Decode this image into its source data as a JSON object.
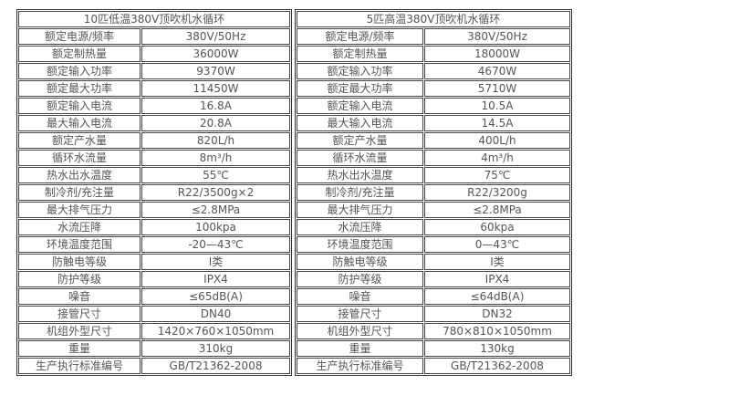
{
  "tables": [
    {
      "title": "10匹低温380V顶吹机水循环",
      "rows": [
        [
          "额定电源/频率",
          "380V/50Hz"
        ],
        [
          "额定制热量",
          "36000W"
        ],
        [
          "额定输入功率",
          "9370W"
        ],
        [
          "额定最大功率",
          "11450W"
        ],
        [
          "额定输入电流",
          "16.8A"
        ],
        [
          "最大输入电流",
          "20.8A"
        ],
        [
          "额定产水量",
          "820L/h"
        ],
        [
          "循环水流量",
          "8m³/h"
        ],
        [
          "热水出水温度",
          "55℃"
        ],
        [
          "制冷剂/充注量",
          "R22/3500g×2"
        ],
        [
          "最大排气压力",
          "≤2.8MPa"
        ],
        [
          "水流压降",
          "100kpa"
        ],
        [
          "环境温度范围",
          "-20—43℃"
        ],
        [
          "防触电等级",
          "I类"
        ],
        [
          "防护等级",
          "IPX4"
        ],
        [
          "噪音",
          "≤65dB(A)"
        ],
        [
          "接管尺寸",
          "DN40"
        ],
        [
          "机组外型尺寸",
          "1420×760×1050mm"
        ],
        [
          "重量",
          "310kg"
        ],
        [
          "生产执行标准编号",
          "GB/T21362-2008"
        ]
      ]
    },
    {
      "title": "5匹高温380V顶吹机水循环",
      "rows": [
        [
          "额定电源/频率",
          "380V/50Hz"
        ],
        [
          "额定制热量",
          "18000W"
        ],
        [
          "额定输入功率",
          "4670W"
        ],
        [
          "额定最大功率",
          "5710W"
        ],
        [
          "额定输入电流",
          "10.5A"
        ],
        [
          "最大输入电流",
          "14.5A"
        ],
        [
          "额定产水量",
          "400L/h"
        ],
        [
          "循环水流量",
          "4m³/h"
        ],
        [
          "热水出水温度",
          "75℃"
        ],
        [
          "制冷剂/充注量",
          "R22/3200g"
        ],
        [
          "最大排气压力",
          "≤2.8MPa"
        ],
        [
          "水流压降",
          "60kpa"
        ],
        [
          "环境温度范围",
          "0—43℃"
        ],
        [
          "防触电等级",
          "I类"
        ],
        [
          "防护等级",
          "IPX4"
        ],
        [
          "噪音",
          "≤64dB(A)"
        ],
        [
          "接管尺寸",
          "DN32"
        ],
        [
          "机组外型尺寸",
          "780×810×1050mm"
        ],
        [
          "重量",
          "130kg"
        ],
        [
          "生产执行标准编号",
          "GB/T21362-2008"
        ]
      ]
    }
  ]
}
